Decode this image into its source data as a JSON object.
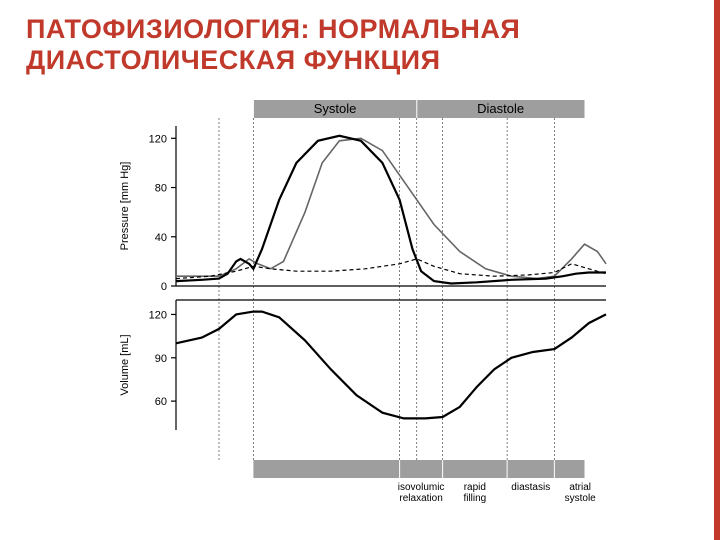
{
  "title": "ПАТОФИЗИОЛОГИЯ: НОРМАЛЬНАЯ ДИАСТОЛИЧЕСКАЯ ФУНКЦИЯ",
  "accent_color": "#c0392b",
  "chart": {
    "colors": {
      "background": "#ffffff",
      "band": "#9e9e9e",
      "axis": "#000000",
      "grid": "#000000",
      "curve_main": "#000000",
      "curve_secondary": "#666666",
      "curve_dashed": "#000000"
    },
    "layout": {
      "x_start": 70,
      "x_end": 500,
      "top_band_y": 10,
      "top_band_h": 18,
      "bot_band_y": 370,
      "bot_band_h": 18,
      "pressure": {
        "y_top": 36,
        "y_bot": 196
      },
      "volume": {
        "y_top": 210,
        "y_bot": 340
      }
    },
    "time_axis": {
      "t_min": 0,
      "t_max": 1.0,
      "vlines": [
        0.1,
        0.18,
        0.52,
        0.56,
        0.62,
        0.77,
        0.88
      ],
      "systole_span": [
        0.18,
        0.56
      ],
      "diastole_span": [
        0.56,
        0.95
      ],
      "top_labels": {
        "Systole": [
          0.18,
          0.56
        ],
        "Diastole": [
          0.56,
          0.95
        ]
      },
      "bottom_segments": [
        {
          "label": "isovolumic relaxation",
          "from": 0.52,
          "to": 0.62,
          "small": true
        },
        {
          "label": "rapid filling",
          "from": 0.62,
          "to": 0.77,
          "small": true
        },
        {
          "label": "diastasis",
          "from": 0.77,
          "to": 0.88,
          "small": true
        },
        {
          "label": "atrial systole",
          "from": 0.88,
          "to": 1.0,
          "small": true
        }
      ]
    },
    "pressure": {
      "label": "Pressure [mm Hg]",
      "ylim": [
        0,
        130
      ],
      "ticks": [
        0,
        40,
        80,
        120
      ],
      "label_fontsize": 11,
      "tick_fontsize": 11,
      "lv_curve": [
        [
          0.0,
          4
        ],
        [
          0.06,
          5
        ],
        [
          0.1,
          6
        ],
        [
          0.12,
          10
        ],
        [
          0.14,
          20
        ],
        [
          0.15,
          22
        ],
        [
          0.17,
          18
        ],
        [
          0.18,
          14
        ],
        [
          0.2,
          30
        ],
        [
          0.24,
          70
        ],
        [
          0.28,
          100
        ],
        [
          0.33,
          118
        ],
        [
          0.38,
          122
        ],
        [
          0.43,
          118
        ],
        [
          0.48,
          100
        ],
        [
          0.52,
          70
        ],
        [
          0.55,
          30
        ],
        [
          0.57,
          12
        ],
        [
          0.6,
          4
        ],
        [
          0.64,
          2
        ],
        [
          0.7,
          3
        ],
        [
          0.78,
          5
        ],
        [
          0.86,
          6
        ],
        [
          0.9,
          8
        ],
        [
          0.93,
          10
        ],
        [
          0.96,
          11
        ],
        [
          1.0,
          11
        ]
      ],
      "aortic_curve": [
        [
          0.0,
          8
        ],
        [
          0.06,
          8
        ],
        [
          0.1,
          8
        ],
        [
          0.14,
          14
        ],
        [
          0.17,
          22
        ],
        [
          0.19,
          18
        ],
        [
          0.22,
          14
        ],
        [
          0.25,
          20
        ],
        [
          0.3,
          60
        ],
        [
          0.34,
          100
        ],
        [
          0.38,
          118
        ],
        [
          0.43,
          120
        ],
        [
          0.48,
          110
        ],
        [
          0.52,
          90
        ],
        [
          0.56,
          70
        ],
        [
          0.6,
          50
        ],
        [
          0.66,
          28
        ],
        [
          0.72,
          14
        ],
        [
          0.78,
          8
        ],
        [
          0.84,
          6
        ],
        [
          0.88,
          8
        ],
        [
          0.92,
          22
        ],
        [
          0.95,
          34
        ],
        [
          0.98,
          28
        ],
        [
          1.0,
          18
        ]
      ],
      "la_curve": [
        [
          0.0,
          6
        ],
        [
          0.08,
          8
        ],
        [
          0.14,
          12
        ],
        [
          0.18,
          16
        ],
        [
          0.22,
          14
        ],
        [
          0.28,
          12
        ],
        [
          0.36,
          12
        ],
        [
          0.44,
          14
        ],
        [
          0.52,
          18
        ],
        [
          0.56,
          22
        ],
        [
          0.6,
          16
        ],
        [
          0.66,
          10
        ],
        [
          0.74,
          8
        ],
        [
          0.82,
          9
        ],
        [
          0.88,
          11
        ],
        [
          0.92,
          18
        ],
        [
          0.96,
          14
        ],
        [
          1.0,
          10
        ]
      ]
    },
    "volume": {
      "label": "Volume [mL]",
      "ylim": [
        40,
        130
      ],
      "ticks": [
        60,
        90,
        120
      ],
      "label_fontsize": 11,
      "tick_fontsize": 11,
      "lv_curve": [
        [
          0.0,
          100
        ],
        [
          0.06,
          104
        ],
        [
          0.1,
          110
        ],
        [
          0.14,
          120
        ],
        [
          0.18,
          122
        ],
        [
          0.2,
          122
        ],
        [
          0.24,
          118
        ],
        [
          0.3,
          102
        ],
        [
          0.36,
          82
        ],
        [
          0.42,
          64
        ],
        [
          0.48,
          52
        ],
        [
          0.53,
          48
        ],
        [
          0.58,
          48
        ],
        [
          0.62,
          49
        ],
        [
          0.66,
          56
        ],
        [
          0.7,
          70
        ],
        [
          0.74,
          82
        ],
        [
          0.78,
          90
        ],
        [
          0.83,
          94
        ],
        [
          0.88,
          96
        ],
        [
          0.92,
          104
        ],
        [
          0.96,
          114
        ],
        [
          1.0,
          120
        ]
      ]
    }
  }
}
